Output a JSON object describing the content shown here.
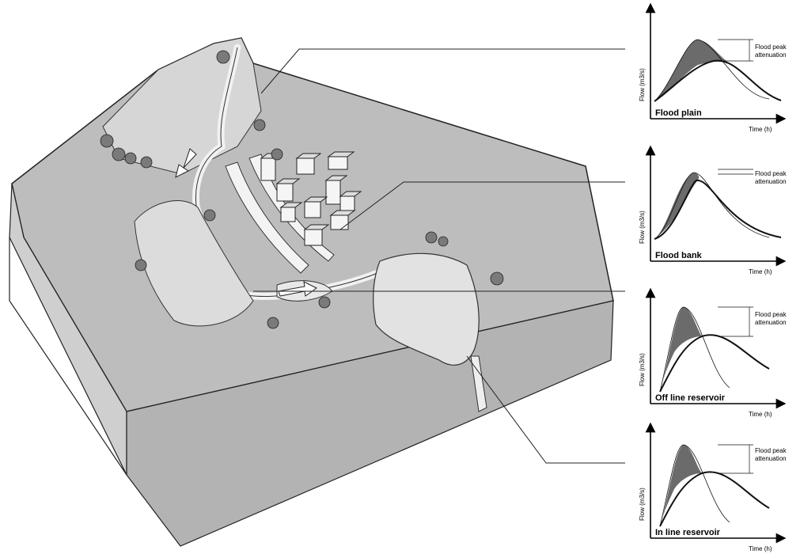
{
  "panels": [
    {
      "id": "flood-plain",
      "title": "Flood plain",
      "y_label": "Flow (m3/s)",
      "x_label": "Time (h)",
      "annotation_line1": "Flood peak",
      "annotation_line2": "attenuation"
    },
    {
      "id": "flood-bank",
      "title": "Flood bank",
      "y_label": "Flow (m3/s)",
      "x_label": "Time (h)",
      "annotation_line1": "Flood peak",
      "annotation_line2": "attenuation"
    },
    {
      "id": "off-line-reservoir",
      "title": "Off line reservoir",
      "y_label": "Flow (m3/s)",
      "x_label": "Time (h)",
      "annotation_line1": "Flood peak",
      "annotation_line2": "attenuation"
    },
    {
      "id": "in-line-reservoir",
      "title": "In line reservoir",
      "y_label": "Flow (m3/s)",
      "x_label": "Time (h)",
      "annotation_line1": "Flood peak",
      "annotation_line2": "attenuation"
    }
  ],
  "colors": {
    "ground": "#b9b9b9",
    "ground_side": "#d4d4d4",
    "ground_front": "#a6a6a6",
    "water": "#e4e4e4",
    "hydrograph_fill": "#6b6b6b",
    "tree": "#777777"
  },
  "icons": [
    "tree-icon",
    "building-icon",
    "flow-arrow-icon"
  ]
}
